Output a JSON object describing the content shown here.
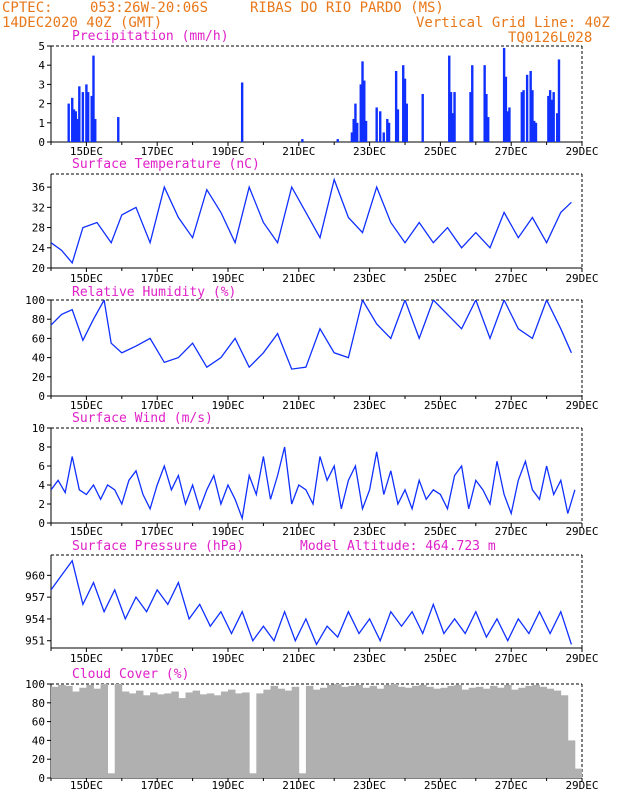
{
  "header": {
    "source": "CPTEC:",
    "coords": "053:26W-20:06S",
    "location": "RIBAS DO RIO PARDO (MS)",
    "date": "14DEC2020 40Z (GMT)",
    "grid_line": "Vertical Grid Line: 40Z",
    "code": "TQ0126L028",
    "model_altitude": "Model Altitude: 464.723 m"
  },
  "colors": {
    "header": "#e8781a",
    "title": "#e020c8",
    "line": "#1030ff",
    "cloud": "#b0b0b0"
  },
  "x_ticks": [
    "15DEC",
    "17DEC",
    "19DEC",
    "21DEC",
    "23DEC",
    "25DEC",
    "27DEC",
    "29DEC"
  ],
  "chart_data": [
    {
      "type": "bar",
      "title": "Precipitation (mm/h)",
      "ylim": [
        0,
        5
      ],
      "yticks": [
        0,
        1,
        2,
        3,
        4,
        5
      ],
      "x_unit": "days since 14DEC2020 00Z",
      "bars": [
        [
          0.5,
          2.0
        ],
        [
          0.6,
          2.3
        ],
        [
          0.65,
          1.7
        ],
        [
          0.7,
          1.6
        ],
        [
          0.75,
          1.2
        ],
        [
          0.8,
          2.9
        ],
        [
          0.9,
          2.6
        ],
        [
          1.0,
          3.0
        ],
        [
          1.05,
          2.6
        ],
        [
          1.15,
          2.4
        ],
        [
          1.2,
          4.5
        ],
        [
          1.25,
          1.2
        ],
        [
          1.9,
          1.3
        ],
        [
          5.4,
          3.1
        ],
        [
          7.1,
          0.15
        ],
        [
          8.1,
          0.15
        ],
        [
          8.5,
          0.5
        ],
        [
          8.55,
          1.2
        ],
        [
          8.6,
          2.0
        ],
        [
          8.65,
          1.0
        ],
        [
          8.75,
          3.0
        ],
        [
          8.8,
          4.2
        ],
        [
          8.85,
          3.2
        ],
        [
          8.9,
          1.1
        ],
        [
          9.2,
          1.8
        ],
        [
          9.3,
          1.6
        ],
        [
          9.4,
          0.5
        ],
        [
          9.5,
          1.2
        ],
        [
          9.55,
          1.0
        ],
        [
          9.75,
          3.7
        ],
        [
          9.8,
          1.7
        ],
        [
          9.95,
          4.0
        ],
        [
          10.0,
          3.3
        ],
        [
          10.05,
          2.0
        ],
        [
          10.5,
          2.5
        ],
        [
          11.25,
          4.5
        ],
        [
          11.3,
          2.6
        ],
        [
          11.35,
          1.5
        ],
        [
          11.4,
          2.6
        ],
        [
          11.85,
          2.6
        ],
        [
          11.9,
          4.0
        ],
        [
          12.25,
          4.0
        ],
        [
          12.3,
          2.5
        ],
        [
          12.35,
          1.3
        ],
        [
          12.8,
          4.9
        ],
        [
          12.85,
          3.4
        ],
        [
          12.9,
          1.6
        ],
        [
          12.95,
          1.8
        ],
        [
          13.3,
          2.6
        ],
        [
          13.35,
          2.7
        ],
        [
          13.45,
          3.5
        ],
        [
          13.55,
          3.7
        ],
        [
          13.6,
          2.7
        ],
        [
          13.65,
          1.1
        ],
        [
          13.7,
          1.0
        ],
        [
          14.05,
          2.4
        ],
        [
          14.1,
          2.7
        ],
        [
          14.15,
          2.2
        ],
        [
          14.2,
          2.6
        ],
        [
          14.3,
          1.5
        ],
        [
          14.35,
          4.3
        ]
      ]
    },
    {
      "type": "line",
      "title": "Surface Temperature (nC)",
      "ylim": [
        20,
        38.6
      ],
      "yticks": [
        20,
        24,
        28,
        32,
        36
      ],
      "x_unit": "days since 14DEC2020 00Z",
      "x": [
        0.0,
        0.3,
        0.6,
        0.9,
        1.3,
        1.7,
        2.0,
        2.4,
        2.8,
        3.2,
        3.6,
        4.0,
        4.4,
        4.8,
        5.2,
        5.6,
        6.0,
        6.4,
        6.8,
        7.2,
        7.6,
        8.0,
        8.4,
        8.8,
        9.2,
        9.6,
        10.0,
        10.4,
        10.8,
        11.2,
        11.6,
        12.0,
        12.4,
        12.8,
        13.2,
        13.6,
        14.0,
        14.4,
        14.7
      ],
      "y": [
        25,
        23.5,
        21,
        28,
        29,
        25,
        30.5,
        32,
        25,
        36,
        30,
        26,
        35.5,
        31,
        25,
        36,
        29,
        25,
        36,
        31,
        26,
        37.5,
        30,
        27,
        36,
        29,
        25,
        29,
        25,
        28,
        24,
        27,
        24,
        31,
        26,
        30,
        25,
        31,
        33
      ]
    },
    {
      "type": "line",
      "title": "Relative Humidity (%)",
      "ylim": [
        0,
        100
      ],
      "yticks": [
        0,
        20,
        40,
        60,
        80,
        100
      ],
      "x_unit": "days since 14DEC2020 00Z",
      "x": [
        0.0,
        0.3,
        0.6,
        0.9,
        1.2,
        1.5,
        1.7,
        2.0,
        2.4,
        2.8,
        3.2,
        3.6,
        4.0,
        4.4,
        4.8,
        5.2,
        5.6,
        6.0,
        6.4,
        6.8,
        7.2,
        7.6,
        8.0,
        8.4,
        8.8,
        9.2,
        9.6,
        10.0,
        10.4,
        10.8,
        11.2,
        11.6,
        12.0,
        12.4,
        12.8,
        13.2,
        13.6,
        14.0,
        14.4,
        14.7
      ],
      "y": [
        74,
        85,
        90,
        58,
        80,
        100,
        55,
        45,
        52,
        60,
        35,
        40,
        55,
        30,
        40,
        60,
        30,
        45,
        65,
        28,
        30,
        70,
        45,
        40,
        100,
        75,
        60,
        100,
        60,
        100,
        85,
        70,
        100,
        60,
        100,
        70,
        60,
        100,
        70,
        45
      ]
    },
    {
      "type": "line",
      "title": "Surface Wind (m/s)",
      "ylim": [
        0,
        10
      ],
      "yticks": [
        0,
        2,
        4,
        6,
        8,
        10
      ],
      "x_unit": "days since 14DEC2020 00Z",
      "x": [
        0.0,
        0.2,
        0.4,
        0.6,
        0.8,
        1.0,
        1.2,
        1.4,
        1.6,
        1.8,
        2.0,
        2.2,
        2.4,
        2.6,
        2.8,
        3.0,
        3.2,
        3.4,
        3.6,
        3.8,
        4.0,
        4.2,
        4.4,
        4.6,
        4.8,
        5.0,
        5.2,
        5.4,
        5.6,
        5.8,
        6.0,
        6.2,
        6.4,
        6.6,
        6.8,
        7.0,
        7.2,
        7.4,
        7.6,
        7.8,
        8.0,
        8.2,
        8.4,
        8.6,
        8.8,
        9.0,
        9.2,
        9.4,
        9.6,
        9.8,
        10.0,
        10.2,
        10.4,
        10.6,
        10.8,
        11.0,
        11.2,
        11.4,
        11.6,
        11.8,
        12.0,
        12.2,
        12.4,
        12.6,
        12.8,
        13.0,
        13.2,
        13.4,
        13.6,
        13.8,
        14.0,
        14.2,
        14.4,
        14.6,
        14.8
      ],
      "y": [
        3.5,
        4.5,
        3.2,
        7.0,
        3.5,
        3.0,
        4.0,
        2.5,
        4.0,
        3.5,
        2.0,
        4.5,
        5.5,
        3.0,
        1.5,
        4.0,
        6.0,
        3.5,
        5.0,
        2.0,
        4.0,
        1.5,
        3.5,
        5.0,
        2.0,
        4.0,
        2.5,
        0.5,
        5.0,
        3.0,
        7.0,
        2.5,
        5.0,
        8.0,
        2.0,
        4.0,
        3.5,
        2.0,
        7.0,
        4.5,
        6.0,
        1.5,
        4.5,
        6.0,
        1.5,
        3.5,
        7.5,
        3.0,
        5.5,
        2.0,
        3.5,
        1.5,
        4.5,
        2.5,
        3.5,
        3.0,
        1.5,
        5.0,
        6.0,
        1.5,
        4.5,
        3.5,
        2.0,
        6.5,
        3.0,
        1.0,
        4.5,
        6.5,
        3.5,
        2.5,
        6.0,
        3.0,
        4.5,
        1.0,
        3.5
      ]
    },
    {
      "type": "line",
      "title": "Surface Pressure (hPa)",
      "ylim": [
        950,
        962.8
      ],
      "yticks": [
        951,
        954,
        957,
        960
      ],
      "x_unit": "days since 14DEC2020 00Z",
      "x": [
        0.0,
        0.3,
        0.6,
        0.9,
        1.2,
        1.5,
        1.8,
        2.1,
        2.4,
        2.7,
        3.0,
        3.3,
        3.6,
        3.9,
        4.2,
        4.5,
        4.8,
        5.1,
        5.4,
        5.7,
        6.0,
        6.3,
        6.6,
        6.9,
        7.2,
        7.5,
        7.8,
        8.1,
        8.4,
        8.7,
        9.0,
        9.3,
        9.6,
        9.9,
        10.2,
        10.5,
        10.8,
        11.1,
        11.4,
        11.7,
        12.0,
        12.3,
        12.6,
        12.9,
        13.2,
        13.5,
        13.8,
        14.1,
        14.4,
        14.7
      ],
      "y": [
        958,
        960,
        962,
        956,
        959,
        955,
        958,
        954,
        957,
        955,
        958,
        956,
        959,
        954,
        956,
        953,
        955,
        952,
        955,
        951,
        953,
        951,
        955,
        951,
        954,
        950.5,
        953,
        951.5,
        955,
        952,
        954,
        951,
        955,
        953,
        955,
        952,
        956,
        952,
        954,
        952,
        955,
        951.5,
        954,
        951,
        954,
        952,
        955,
        952,
        955,
        950.5
      ]
    },
    {
      "type": "bar",
      "title": "Cloud Cover (%)",
      "ylim": [
        0,
        100
      ],
      "yticks": [
        0,
        20,
        40,
        60,
        80,
        100
      ],
      "x_unit": "days since 14DEC2020 00Z",
      "x": [
        0.0,
        0.2,
        0.4,
        0.6,
        0.8,
        1.0,
        1.2,
        1.4,
        1.6,
        1.8,
        2.0,
        2.2,
        2.4,
        2.6,
        2.8,
        3.0,
        3.2,
        3.4,
        3.6,
        3.8,
        4.0,
        4.2,
        4.4,
        4.6,
        4.8,
        5.0,
        5.2,
        5.4,
        5.6,
        5.8,
        6.0,
        6.2,
        6.4,
        6.6,
        6.8,
        7.0,
        7.2,
        7.4,
        7.6,
        7.8,
        8.0,
        8.2,
        8.4,
        8.6,
        8.8,
        9.0,
        9.2,
        9.4,
        9.6,
        9.8,
        10.0,
        10.2,
        10.4,
        10.6,
        10.8,
        11.0,
        11.2,
        11.4,
        11.6,
        11.8,
        12.0,
        12.2,
        12.4,
        12.6,
        12.8,
        13.0,
        13.2,
        13.4,
        13.6,
        13.8,
        14.0,
        14.2,
        14.4,
        14.6,
        14.8
      ],
      "y": [
        97,
        99,
        98,
        92,
        96,
        99,
        95,
        100,
        5,
        100,
        92,
        90,
        93,
        88,
        91,
        89,
        90,
        92,
        85,
        91,
        93,
        89,
        90,
        88,
        92,
        94,
        90,
        91,
        5,
        90,
        94,
        98,
        95,
        93,
        97,
        5,
        98,
        94,
        96,
        99,
        100,
        97,
        98,
        99,
        96,
        98,
        95,
        99,
        100,
        97,
        96,
        98,
        99,
        97,
        95,
        96,
        98,
        99,
        94,
        96,
        97,
        95,
        98,
        96,
        99,
        94,
        96,
        98,
        99,
        97,
        95,
        93,
        88,
        40,
        10
      ]
    }
  ]
}
